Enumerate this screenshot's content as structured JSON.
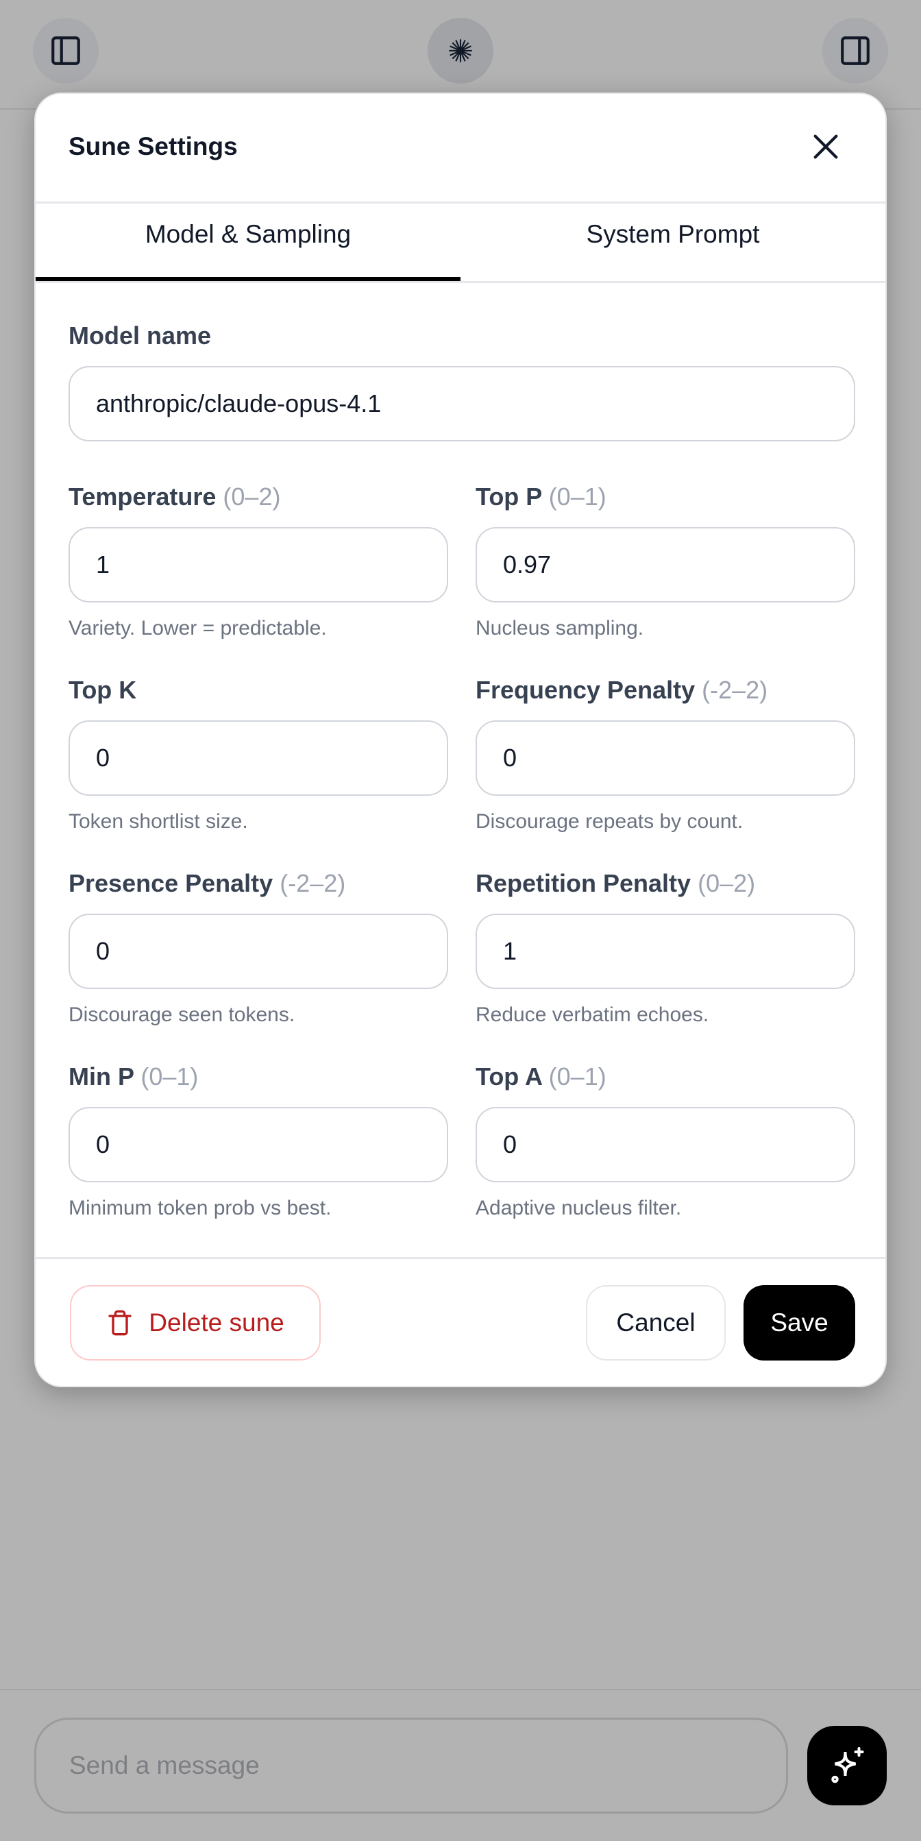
{
  "topbar": {
    "left_icon": "sidebar-left-icon",
    "center_icon": "sparkle-burst-icon",
    "right_icon": "sidebar-right-icon"
  },
  "modal": {
    "title": "Sune Settings",
    "tabs": [
      {
        "label": "Model & Sampling",
        "active": true
      },
      {
        "label": "System Prompt",
        "active": false
      }
    ],
    "model_name": {
      "label": "Model name",
      "value": "anthropic/claude-opus-4.1"
    },
    "fields": [
      {
        "label": "Temperature",
        "range": "(0–2)",
        "value": "1",
        "help": "Variety. Lower = predictable."
      },
      {
        "label": "Top P",
        "range": "(0–1)",
        "value": "0.97",
        "help": "Nucleus sampling."
      },
      {
        "label": "Top K",
        "range": "",
        "value": "0",
        "help": "Token shortlist size."
      },
      {
        "label": "Frequency Penalty",
        "range": "(-2–2)",
        "value": "0",
        "help": "Discourage repeats by count."
      },
      {
        "label": "Presence Penalty",
        "range": "(-2–2)",
        "value": "0",
        "help": "Discourage seen tokens."
      },
      {
        "label": "Repetition Penalty",
        "range": "(0–2)",
        "value": "1",
        "help": "Reduce verbatim echoes."
      },
      {
        "label": "Min P",
        "range": "(0–1)",
        "value": "0",
        "help": "Minimum token prob vs best."
      },
      {
        "label": "Top A",
        "range": "(0–1)",
        "value": "0",
        "help": "Adaptive nucleus filter."
      }
    ],
    "footer": {
      "delete_label": "Delete sune",
      "cancel_label": "Cancel",
      "save_label": "Save"
    }
  },
  "composer": {
    "placeholder": "Send a message"
  },
  "colors": {
    "danger": "#b91c1c",
    "primary": "#000000"
  }
}
